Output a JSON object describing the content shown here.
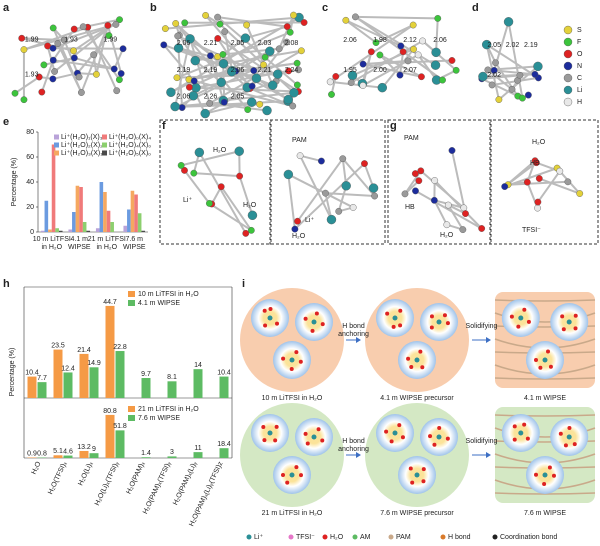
{
  "panel_labels": [
    "a",
    "b",
    "c",
    "d",
    "e",
    "f",
    "g",
    "h",
    "i"
  ],
  "bond_lengths": {
    "a": [
      "1.99",
      "1.93",
      "1.99",
      "1.93"
    ],
    "b": [
      "2.06",
      "2.21",
      "2.05",
      "2.03",
      "2.08",
      "2.19",
      "2.19",
      "2.06",
      "2.21",
      "2.24",
      "2.06",
      "2.26",
      "2.05"
    ],
    "c": [
      "2.06",
      "1.98",
      "2.12",
      "2.06",
      "1.95",
      "2.00",
      "2.07"
    ],
    "d": [
      "2.05",
      "2.02",
      "2.19",
      "2.02"
    ]
  },
  "element_legend": [
    {
      "symbol": "S",
      "color": "#e3d13a"
    },
    {
      "symbol": "F",
      "color": "#3cc43c"
    },
    {
      "symbol": "O",
      "color": "#de2222"
    },
    {
      "symbol": "N",
      "color": "#1c2c9c"
    },
    {
      "symbol": "C",
      "color": "#9a9a9a"
    },
    {
      "symbol": "Li",
      "color": "#2a8f96"
    },
    {
      "symbol": "H",
      "color": "#e8e8e8"
    }
  ],
  "chart_data": [
    {
      "type": "bar",
      "panel": "e",
      "y_label": "Percentage (%)",
      "categories": [
        [
          "10 m LiTFSI",
          "in H₂O"
        ],
        [
          "4.1 m",
          "WIPSE"
        ],
        [
          "21 m LiTFSI",
          "in H₂O"
        ],
        [
          "7.6 m",
          "WIPSE"
        ]
      ],
      "ylim": [
        0,
        80
      ],
      "yticks": [
        0,
        20,
        40,
        60,
        80
      ],
      "series": [
        {
          "name": "Li⁺(H₂O)₁(X)₃",
          "color": "#b9a3d9",
          "values": [
            1,
            2,
            3,
            5
          ]
        },
        {
          "name": "Li⁺(H₂O)₂(X)₂",
          "color": "#6b9be0",
          "values": [
            25,
            16,
            40,
            18
          ]
        },
        {
          "name": "Li⁺(H₂O)₃(X)₁",
          "color": "#f5a860",
          "values": [
            2,
            37,
            32,
            33
          ]
        },
        {
          "name": "Li⁺(H₂O)₀(X)₄",
          "color": "#f07a7a",
          "values": [
            70,
            36,
            17,
            30
          ]
        },
        {
          "name": "Li⁺(H₂O)₄(X)₀",
          "color": "#8ccf6e",
          "values": [
            3,
            8,
            8,
            15
          ]
        },
        {
          "name": "Li⁺(H₂O)₅(X)₀",
          "color": "#4a4a4a",
          "values": [
            1,
            1,
            0,
            1
          ]
        }
      ]
    },
    {
      "type": "bar",
      "panel": "h",
      "y_label": "Percentage (%)",
      "categories": [
        "H₂O",
        "H₂O(TFSI)ₓ",
        "H₂O(Li)ₓ",
        "H₂O(Li)ₓ(TFSI)ᵧ",
        "H₂O(PAM)ₓ",
        "H₂O(PAM)ₓ(TFSI)ᵧ",
        "H₂O(PAM)ₓ(Li)ᵧ",
        "H₂O(PAM)ₓ(Li)ᵧ(TFSI)z"
      ],
      "panels": [
        {
          "ylim": [
            0,
            50
          ],
          "series": [
            {
              "name": "10 m LiTFSI in H₂O",
              "color": "#f59a45",
              "values": [
                10.4,
                23.5,
                21.4,
                44.7,
                null,
                null,
                null,
                null
              ]
            },
            {
              "name": "4.1 m WIPSE",
              "color": "#5dbb63",
              "values": [
                7.7,
                12.4,
                14.9,
                22.8,
                9.7,
                8.1,
                14,
                10.4
              ]
            }
          ]
        },
        {
          "ylim": [
            0,
            90
          ],
          "series": [
            {
              "name": "21 m LiTFSI in H₂O",
              "color": "#f59a45",
              "values": [
                0.9,
                5.1,
                13.2,
                80.8,
                null,
                null,
                null,
                null
              ]
            },
            {
              "name": "7.6 m WIPSE",
              "color": "#5dbb63",
              "values": [
                0.8,
                4.6,
                9,
                51.8,
                1.4,
                3,
                11,
                18.4
              ]
            }
          ]
        }
      ]
    }
  ],
  "panel_f": {
    "labels": [
      "H₂O",
      "Li⁺",
      "H₂O",
      "PAM",
      "Li⁺",
      "H₂O"
    ]
  },
  "panel_g": {
    "labels": [
      "PAM",
      "HB",
      "H₂O",
      "H₂O",
      "HB",
      "TFSI⁻"
    ]
  },
  "panel_i": {
    "states": [
      "10 m LiTFSI in H₂O",
      "4.1 m WIPSE precursor",
      "4.1 m WIPSE",
      "21 m LiTFSI in H₂O",
      "7.6 m WIPSE precursor",
      "7.6 m WIPSE"
    ],
    "arrows": [
      [
        "H bond",
        "anchoring"
      ],
      [
        "Solidifying"
      ],
      [
        "H bond",
        "anchoring"
      ],
      [
        "Solidifying"
      ]
    ],
    "legend": [
      "Li⁺",
      "TFSI⁻",
      "H₂O",
      "AM",
      "PAM",
      "H bond",
      "Coordination bond"
    ]
  }
}
